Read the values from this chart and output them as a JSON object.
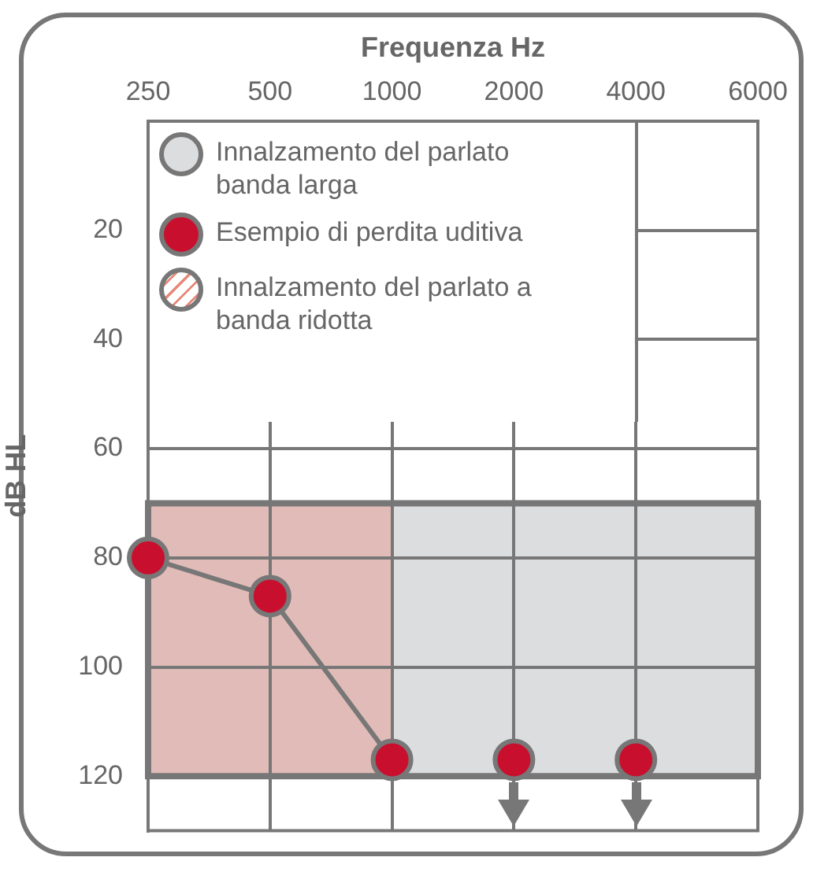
{
  "chart_data": {
    "type": "line",
    "xlabel": "Frequenza Hz",
    "ylabel": "dB HL",
    "categories": [
      "250",
      "500",
      "1000",
      "2000",
      "4000",
      "6000"
    ],
    "series": [
      {
        "name": "Esempio di perdita uditiva",
        "type": "line",
        "color": "#c8102e",
        "values": [
          80,
          87,
          117,
          null,
          null,
          null
        ]
      },
      {
        "type": "scatter",
        "color": "#c8102e",
        "values": [
          null,
          null,
          null,
          117,
          117,
          null
        ]
      }
    ],
    "bands": [
      {
        "axis": "y",
        "from": 70,
        "to": 120,
        "label": "Innalzamento del parlato banda larga",
        "color": "#dcdddf"
      },
      {
        "axis": "x",
        "from": "250",
        "to": "1000",
        "label": "Innalzamento del parlato a banda ridotta",
        "color": "#e8897a"
      }
    ],
    "ylim": [
      130,
      0
    ],
    "yticks": [
      20,
      40,
      60,
      80,
      100,
      120
    ],
    "grid": true,
    "legend": "top left",
    "marker": "circle"
  }
}
